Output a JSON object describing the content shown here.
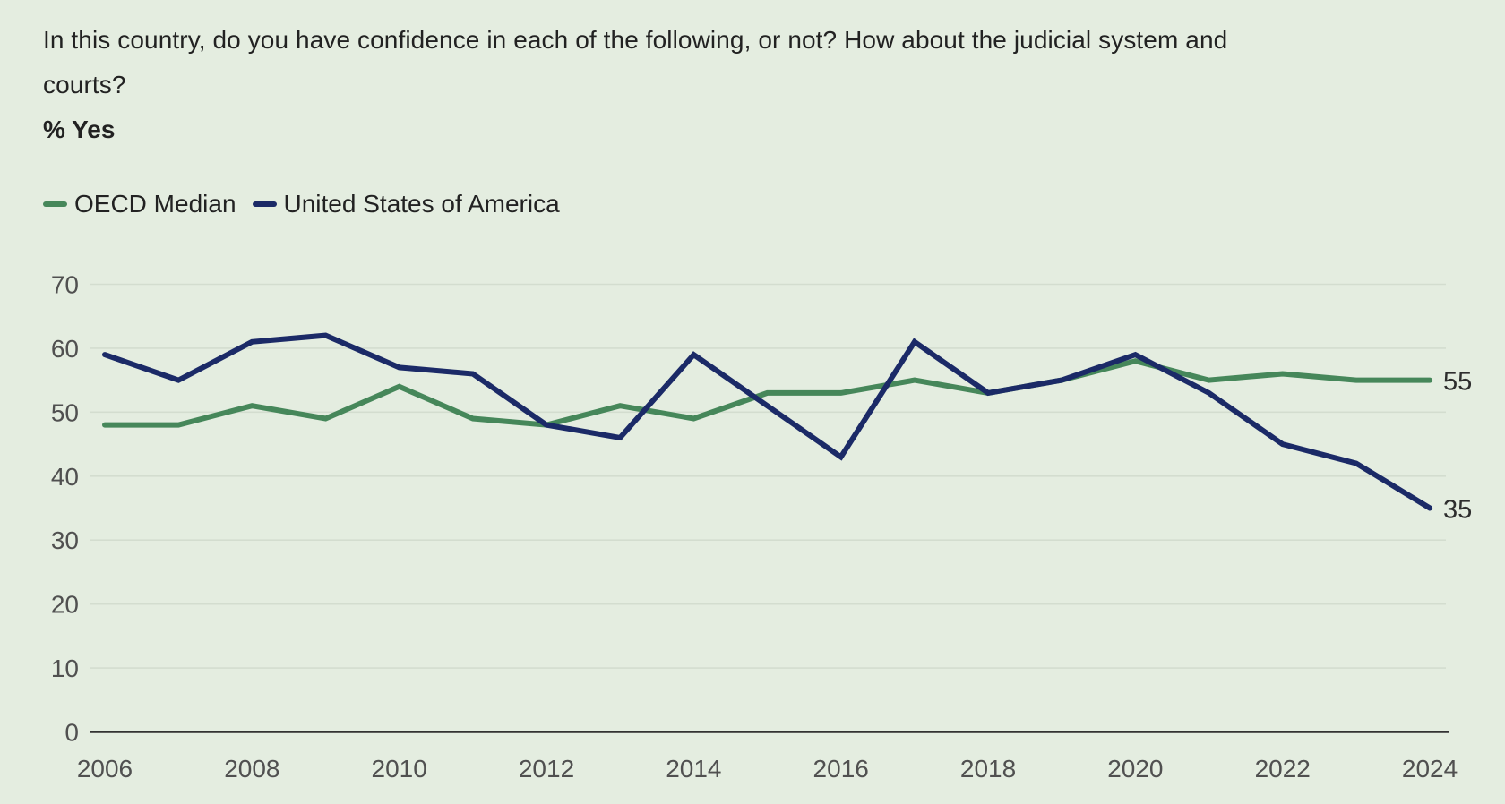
{
  "header": {
    "title_lines": [
      "In this country, do you have confidence in each of the following, or not? How about the judicial system and",
      "courts?"
    ],
    "subtitle": "% Yes"
  },
  "legend": [
    {
      "id": "oecd-median",
      "label": "OECD Median",
      "color": "#46875a"
    },
    {
      "id": "usa",
      "label": "United States of America",
      "color": "#1b2a67"
    }
  ],
  "colors": {
    "background": "#e4ede0",
    "gridline": "#d3ddcf",
    "axis_line": "#333333",
    "tick_label": "#505050",
    "end_label": "#2e2e2e",
    "oecd_green": "#46875a",
    "usa_navy": "#1b2a67"
  },
  "chart_data": {
    "type": "line",
    "title": "In this country, do you have confidence in each of the following, or not? How about the judicial system and courts?",
    "ylabel": "% Yes",
    "x": [
      2006,
      2007,
      2008,
      2009,
      2010,
      2011,
      2012,
      2013,
      2014,
      2015,
      2016,
      2017,
      2018,
      2019,
      2020,
      2021,
      2022,
      2023,
      2024
    ],
    "series": [
      {
        "id": "oecd-median",
        "name": "OECD Median",
        "color": "#46875a",
        "values": [
          48,
          48,
          51,
          49,
          54,
          49,
          48,
          51,
          49,
          53,
          53,
          55,
          53,
          55,
          58,
          55,
          56,
          55,
          55
        ],
        "end_label": "55"
      },
      {
        "id": "usa",
        "name": "United States of America",
        "color": "#1b2a67",
        "values": [
          59,
          55,
          61,
          62,
          57,
          56,
          48,
          46,
          59,
          51,
          43,
          61,
          53,
          55,
          59,
          53,
          45,
          42,
          35
        ],
        "end_label": "35"
      }
    ],
    "ylim": [
      0,
      70
    ],
    "yticks": [
      0,
      10,
      20,
      30,
      40,
      50,
      60,
      70
    ],
    "xticks": [
      2006,
      2008,
      2010,
      2012,
      2014,
      2016,
      2018,
      2020,
      2022,
      2024
    ],
    "grid": true,
    "legend_position": "top-left"
  }
}
